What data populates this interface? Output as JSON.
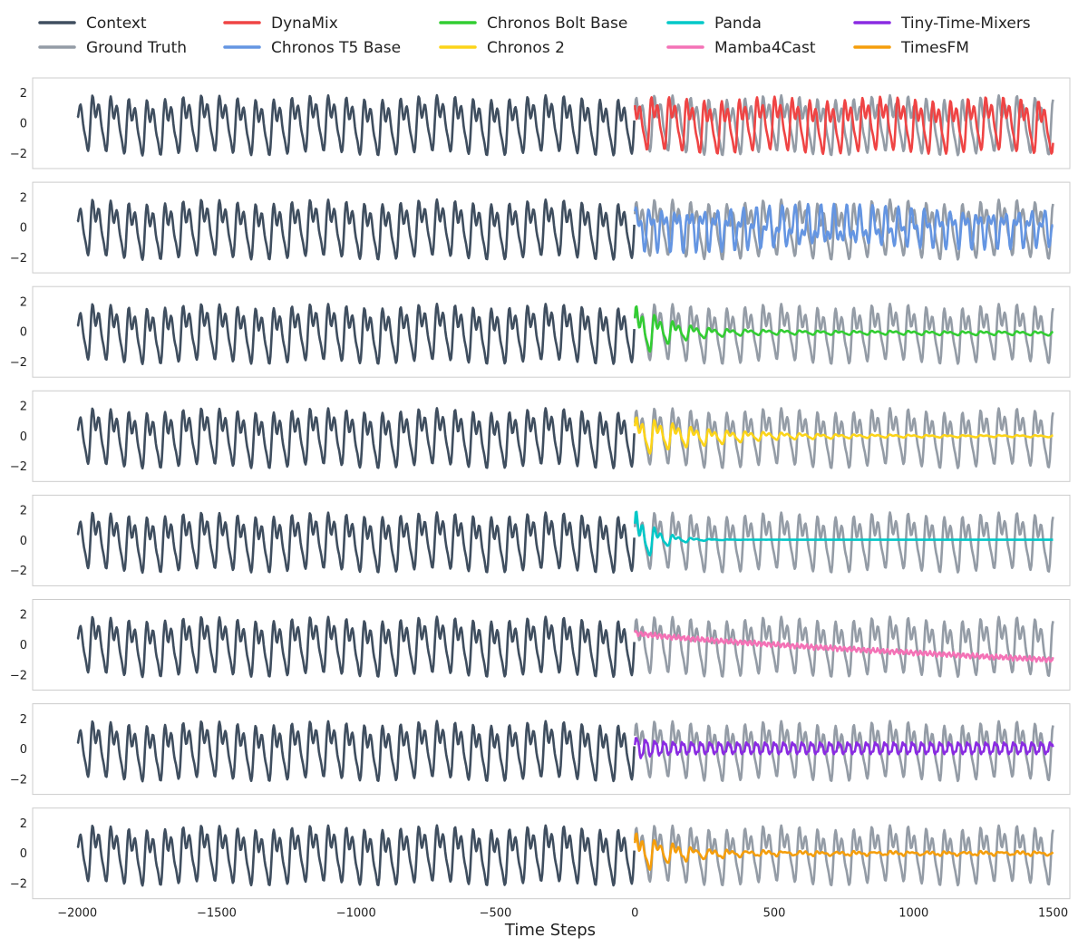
{
  "chart_data": {
    "type": "line",
    "xlabel": "Time Steps",
    "ylabel": "",
    "xlim": [
      -2160,
      1560
    ],
    "ylim": [
      -3,
      3
    ],
    "x_ticks": [
      -2000,
      -1500,
      -1000,
      -500,
      0,
      500,
      1000,
      1500
    ],
    "x_tick_labels": [
      "−2000",
      "−1500",
      "−1000",
      "−500",
      "0",
      "500",
      "1000",
      "1500"
    ],
    "y_ticks": [
      2,
      0,
      -2
    ],
    "y_tick_labels": [
      "2",
      "0",
      "−2"
    ],
    "context_range": [
      -2000,
      0
    ],
    "forecast_range": [
      0,
      1500
    ],
    "legend_position": "top",
    "legend": [
      {
        "label": "Context",
        "color": "#3f4e5f"
      },
      {
        "label": "Ground Truth",
        "color": "#949ca6"
      },
      {
        "label": "DynaMix",
        "color": "#ef4444"
      },
      {
        "label": "Chronos T5 Base",
        "color": "#6495e2"
      },
      {
        "label": "Chronos Bolt Base",
        "color": "#32cd32"
      },
      {
        "label": "Chronos 2",
        "color": "#fcd419"
      },
      {
        "label": "Panda",
        "color": "#00c8c8"
      },
      {
        "label": "Mamba4Cast",
        "color": "#f472b6"
      },
      {
        "label": "Tiny-Time-Mixers",
        "color": "#8a2be2"
      },
      {
        "label": "TimesFM",
        "color": "#f59e0b"
      }
    ],
    "panels": [
      {
        "model": "DynaMix",
        "color": "#ef4444"
      },
      {
        "model": "Chronos T5 Base",
        "color": "#6495e2"
      },
      {
        "model": "Chronos Bolt Base",
        "color": "#32cd32"
      },
      {
        "model": "Chronos 2",
        "color": "#fcd419"
      },
      {
        "model": "Panda",
        "color": "#00c8c8"
      },
      {
        "model": "Mamba4Cast",
        "color": "#f472b6"
      },
      {
        "model": "Tiny-Time-Mixers",
        "color": "#8a2be2"
      },
      {
        "model": "TimesFM",
        "color": "#f59e0b"
      }
    ],
    "series": [
      {
        "name": "Context",
        "x": [
          -2000,
          0
        ],
        "description": "oscillatory series, amplitude about ±2.5, period about 65 steps"
      },
      {
        "name": "Ground Truth",
        "x": [
          0,
          1500
        ],
        "description": "continuation of the same oscillation, amplitude about ±2.5"
      },
      {
        "name": "DynaMix",
        "x": [
          0,
          1500
        ],
        "forecast_mean": 0,
        "start_amplitude": 2.2,
        "end_amplitude": 2.2
      },
      {
        "name": "Chronos T5 Base",
        "x": [
          0,
          1500
        ],
        "forecast_mean": 0,
        "start_amplitude": 1.8,
        "end_amplitude": 1.5
      },
      {
        "name": "Chronos Bolt Base",
        "x": [
          0,
          1500
        ],
        "forecast_mean": -0.1,
        "start_amplitude": 1.4,
        "end_amplitude": 0.05
      },
      {
        "name": "Chronos 2",
        "x": [
          0,
          1500
        ],
        "forecast_mean": 0,
        "start_amplitude": 1.2,
        "end_amplitude": 0.05
      },
      {
        "name": "Panda",
        "x": [
          0,
          1500
        ],
        "forecast_mean": 0.05,
        "start_amplitude": 1.6,
        "end_amplitude": 0.0
      },
      {
        "name": "Mamba4Cast",
        "x": [
          0,
          1500
        ],
        "forecast_start": 0.8,
        "forecast_end": -1.0,
        "start_amplitude": 0.15,
        "end_amplitude": 0.08
      },
      {
        "name": "Tiny-Time-Mixers",
        "x": [
          0,
          1500
        ],
        "forecast_mean": 0.05,
        "start_amplitude": 0.45,
        "end_amplitude": 0.3
      },
      {
        "name": "TimesFM",
        "x": [
          0,
          1500
        ],
        "forecast_mean": 0,
        "start_amplitude": 0.9,
        "end_amplitude": 0.1
      }
    ]
  }
}
